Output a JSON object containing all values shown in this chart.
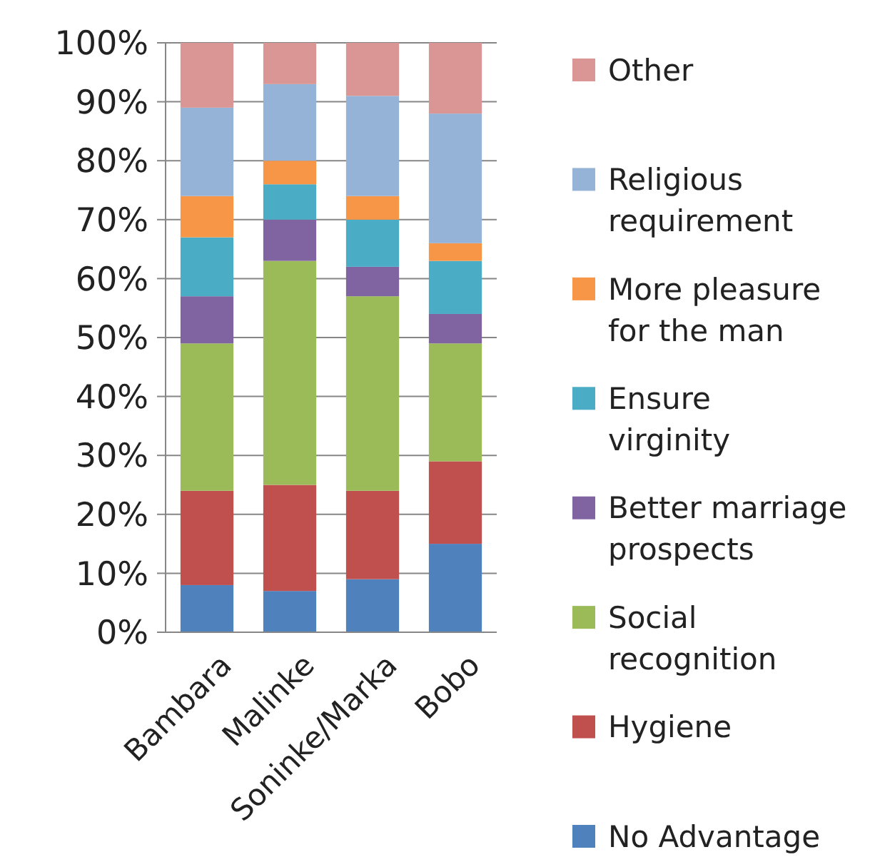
{
  "chart_data": {
    "type": "bar",
    "stacked": true,
    "categories": [
      "Bambara",
      "Malinke",
      "Soninke/Marka",
      "Bobo"
    ],
    "series": [
      {
        "name": "No Advantage",
        "color": "#4f81bd",
        "values": [
          8,
          7,
          9,
          15
        ]
      },
      {
        "name": "Hygiene",
        "color": "#c0504d",
        "values": [
          16,
          18,
          15,
          14
        ]
      },
      {
        "name": "Social recognition",
        "color": "#9bbb59",
        "values": [
          25,
          38,
          33,
          20
        ]
      },
      {
        "name": "Better marriage prospects",
        "color": "#8064a2",
        "values": [
          8,
          7,
          5,
          5
        ]
      },
      {
        "name": "Ensure virginity",
        "color": "#4bacc6",
        "values": [
          10,
          6,
          8,
          9
        ]
      },
      {
        "name": "More pleasure for the man",
        "color": "#f79646",
        "values": [
          7,
          4,
          4,
          3
        ]
      },
      {
        "name": "Religious requirement",
        "color": "#95b3d7",
        "values": [
          15,
          13,
          17,
          22
        ]
      },
      {
        "name": "Other",
        "color": "#d99694",
        "values": [
          11,
          7,
          9,
          12
        ]
      }
    ],
    "ylim": [
      0,
      100
    ],
    "yticks": [
      {
        "value": 0,
        "label": "0%"
      },
      {
        "value": 10,
        "label": "10%"
      },
      {
        "value": 20,
        "label": "20%"
      },
      {
        "value": 30,
        "label": "30%"
      },
      {
        "value": 40,
        "label": "40%"
      },
      {
        "value": 50,
        "label": "50%"
      },
      {
        "value": 60,
        "label": "60%"
      },
      {
        "value": 70,
        "label": "70%"
      },
      {
        "value": 80,
        "label": "80%"
      },
      {
        "value": 90,
        "label": "90%"
      },
      {
        "value": 100,
        "label": "100%"
      }
    ],
    "grid": "y",
    "legend": "right"
  }
}
